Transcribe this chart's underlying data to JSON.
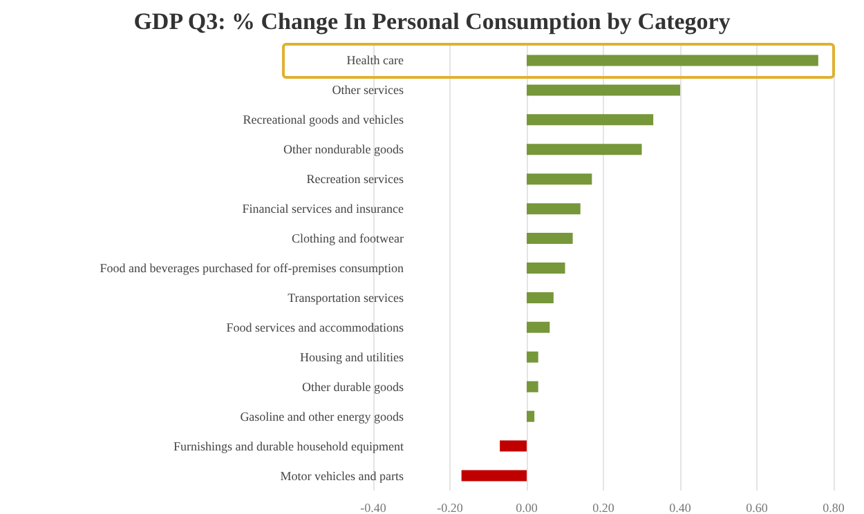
{
  "chart_data": {
    "type": "bar",
    "orientation": "horizontal",
    "title": "GDP Q3: % Change In Personal Consumption by Category",
    "categories": [
      "Health care",
      "Other services",
      "Recreational goods and vehicles",
      "Other nondurable goods",
      "Recreation services",
      "Financial services and insurance",
      "Clothing and footwear",
      "Food and beverages purchased for off-premises consumption",
      "Transportation services",
      "Food services and accommodations",
      "Housing and utilities",
      "Other durable goods",
      "Gasoline and other energy goods",
      "Furnishings and durable household equipment",
      "Motor vehicles and parts"
    ],
    "values": [
      0.76,
      0.4,
      0.33,
      0.3,
      0.17,
      0.14,
      0.12,
      0.1,
      0.07,
      0.06,
      0.03,
      0.03,
      0.02,
      -0.07,
      -0.17
    ],
    "colors": [
      "#76973a",
      "#76973a",
      "#76973a",
      "#76973a",
      "#76973a",
      "#76973a",
      "#76973a",
      "#76973a",
      "#76973a",
      "#76973a",
      "#76973a",
      "#76973a",
      "#76973a",
      "#c00000",
      "#c00000"
    ],
    "xlim": [
      -0.4,
      0.8
    ],
    "xticks": [
      {
        "value": -0.4,
        "label": "-0.40"
      },
      {
        "value": -0.2,
        "label": "-0.20"
      },
      {
        "value": 0,
        "label": "0.00"
      },
      {
        "value": 0.2,
        "label": "0.20"
      },
      {
        "value": 0.4,
        "label": "0.40"
      },
      {
        "value": 0.6,
        "label": "0.60"
      },
      {
        "value": 0.8,
        "label": "0.80"
      }
    ],
    "grid": "x"
  }
}
